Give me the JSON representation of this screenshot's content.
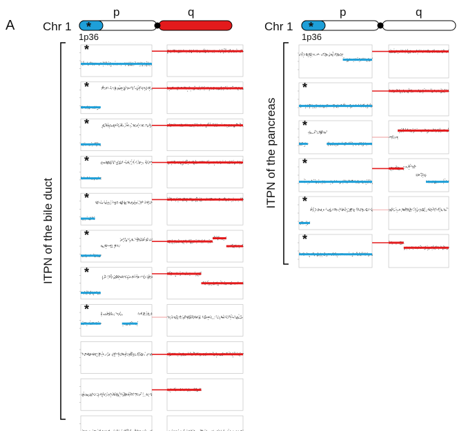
{
  "panel_label": "A",
  "colors": {
    "loss": "#1e9fd8",
    "gain": "#e31a1c",
    "neutral": "#e97a7a",
    "noise": "#222222",
    "frame": "#bbbbbb",
    "bracket": "#000000"
  },
  "chromosome": {
    "name": "Chr 1",
    "p_arm": "p",
    "q_arm": "q",
    "band": "1p36",
    "star": "*"
  },
  "groups": [
    {
      "label": "ITPN of the  bile duct",
      "chromosome_variant": "q-gain",
      "rows": [
        {
          "star": true,
          "p": [
            {
              "to": 1.0,
              "level": 0.6,
              "state": "loss"
            }
          ],
          "q": [
            {
              "to": 1.0,
              "level": 0.2,
              "state": "gain"
            }
          ]
        },
        {
          "star": true,
          "p": [
            {
              "to": 0.28,
              "level": 0.8,
              "state": "loss"
            },
            {
              "to": 1.0,
              "level": 0.2,
              "state": "neutral"
            }
          ],
          "q": [
            {
              "to": 1.0,
              "level": 0.2,
              "state": "gain"
            }
          ]
        },
        {
          "star": true,
          "p": [
            {
              "to": 0.28,
              "level": 0.8,
              "state": "loss"
            },
            {
              "to": 1.0,
              "level": 0.2,
              "state": "neutral"
            }
          ],
          "q": [
            {
              "to": 1.0,
              "level": 0.2,
              "state": "gain"
            }
          ]
        },
        {
          "star": true,
          "p": [
            {
              "to": 0.28,
              "level": 0.7,
              "state": "loss"
            },
            {
              "to": 1.0,
              "level": 0.2,
              "state": "neutral"
            }
          ],
          "q": [
            {
              "to": 1.0,
              "level": 0.2,
              "state": "gain"
            }
          ]
        },
        {
          "star": true,
          "p": [
            {
              "to": 0.2,
              "level": 0.8,
              "state": "loss"
            },
            {
              "to": 1.0,
              "level": 0.3,
              "state": "neutral"
            }
          ],
          "q": [
            {
              "to": 1.0,
              "level": 0.2,
              "state": "gain"
            }
          ]
        },
        {
          "star": true,
          "p": [
            {
              "to": 0.28,
              "level": 0.8,
              "state": "loss"
            },
            {
              "to": 0.55,
              "level": 0.5,
              "state": "neutral"
            },
            {
              "to": 1.0,
              "level": 0.3,
              "state": "neutral"
            }
          ],
          "q": [
            {
              "to": 0.6,
              "level": 0.35,
              "state": "gain"
            },
            {
              "to": 0.78,
              "level": 0.25,
              "state": "gain"
            },
            {
              "to": 1.0,
              "level": 0.5,
              "state": "gain"
            }
          ]
        },
        {
          "star": true,
          "p": [
            {
              "to": 0.28,
              "level": 0.8,
              "state": "loss"
            },
            {
              "to": 1.0,
              "level": 0.3,
              "state": "neutral"
            }
          ],
          "q": [
            {
              "to": 0.45,
              "level": 0.2,
              "state": "gain"
            },
            {
              "to": 1.0,
              "level": 0.5,
              "state": "gain"
            }
          ]
        },
        {
          "star": true,
          "p": [
            {
              "to": 0.28,
              "level": 0.6,
              "state": "loss"
            },
            {
              "to": 0.58,
              "level": 0.3,
              "state": "neutral"
            },
            {
              "to": 0.8,
              "level": 0.6,
              "state": "loss"
            },
            {
              "to": 1.0,
              "level": 0.3,
              "state": "neutral"
            }
          ],
          "q": [
            {
              "to": 1.0,
              "level": 0.4,
              "state": "neutral"
            }
          ]
        },
        {
          "star": false,
          "p": [
            {
              "to": 1.0,
              "level": 0.4,
              "state": "neutral"
            }
          ],
          "q": [
            {
              "to": 1.0,
              "level": 0.4,
              "state": "gain"
            }
          ]
        },
        {
          "star": false,
          "p": [
            {
              "to": 1.0,
              "level": 0.5,
              "state": "neutral"
            }
          ],
          "q": [
            {
              "to": 0.45,
              "level": 0.35,
              "state": "gain"
            },
            {
              "to": 1.0,
              "level": 0.5,
              "state": "empty"
            }
          ]
        },
        {
          "star": false,
          "p": [
            {
              "to": 1.0,
              "level": 0.5,
              "state": "neutral"
            }
          ],
          "q": [
            {
              "to": 1.0,
              "level": 0.5,
              "state": "neutral"
            }
          ]
        }
      ]
    },
    {
      "label": "ITPN of the pancreas",
      "chromosome_variant": "neutral",
      "rows": [
        {
          "star": false,
          "p": [
            {
              "to": 0.6,
              "level": 0.3,
              "state": "neutral"
            },
            {
              "to": 1.0,
              "level": 0.45,
              "state": "loss"
            }
          ],
          "q": [
            {
              "to": 1.0,
              "level": 0.2,
              "state": "gain"
            }
          ]
        },
        {
          "star": true,
          "p": [
            {
              "to": 1.0,
              "level": 0.7,
              "state": "loss"
            }
          ],
          "q": [
            {
              "to": 1.0,
              "level": 0.25,
              "state": "gain"
            }
          ]
        },
        {
          "star": true,
          "p": [
            {
              "to": 0.12,
              "level": 0.7,
              "state": "loss"
            },
            {
              "to": 0.38,
              "level": 0.35,
              "state": "neutral"
            },
            {
              "to": 1.0,
              "level": 0.7,
              "state": "loss"
            }
          ],
          "q": [
            {
              "to": 0.15,
              "level": 0.5,
              "state": "neutral"
            },
            {
              "to": 1.0,
              "level": 0.3,
              "state": "gain"
            }
          ]
        },
        {
          "star": true,
          "p": [
            {
              "to": 1.0,
              "level": 0.7,
              "state": "loss"
            }
          ],
          "q": [
            {
              "to": 0.25,
              "level": 0.3,
              "state": "gain"
            },
            {
              "to": 0.45,
              "level": 0.25,
              "state": "neutral"
            },
            {
              "to": 0.62,
              "level": 0.5,
              "state": "neutral"
            },
            {
              "to": 1.0,
              "level": 0.7,
              "state": "loss"
            }
          ]
        },
        {
          "star": true,
          "p": [
            {
              "to": 0.15,
              "level": 0.8,
              "state": "loss"
            },
            {
              "to": 1.0,
              "level": 0.4,
              "state": "neutral"
            }
          ],
          "q": [
            {
              "to": 1.0,
              "level": 0.4,
              "state": "neutral"
            }
          ]
        },
        {
          "star": true,
          "p": [
            {
              "to": 1.0,
              "level": 0.6,
              "state": "loss"
            }
          ],
          "q": [
            {
              "to": 0.25,
              "level": 0.25,
              "state": "gain"
            },
            {
              "to": 1.0,
              "level": 0.4,
              "state": "gain"
            }
          ]
        }
      ]
    }
  ]
}
